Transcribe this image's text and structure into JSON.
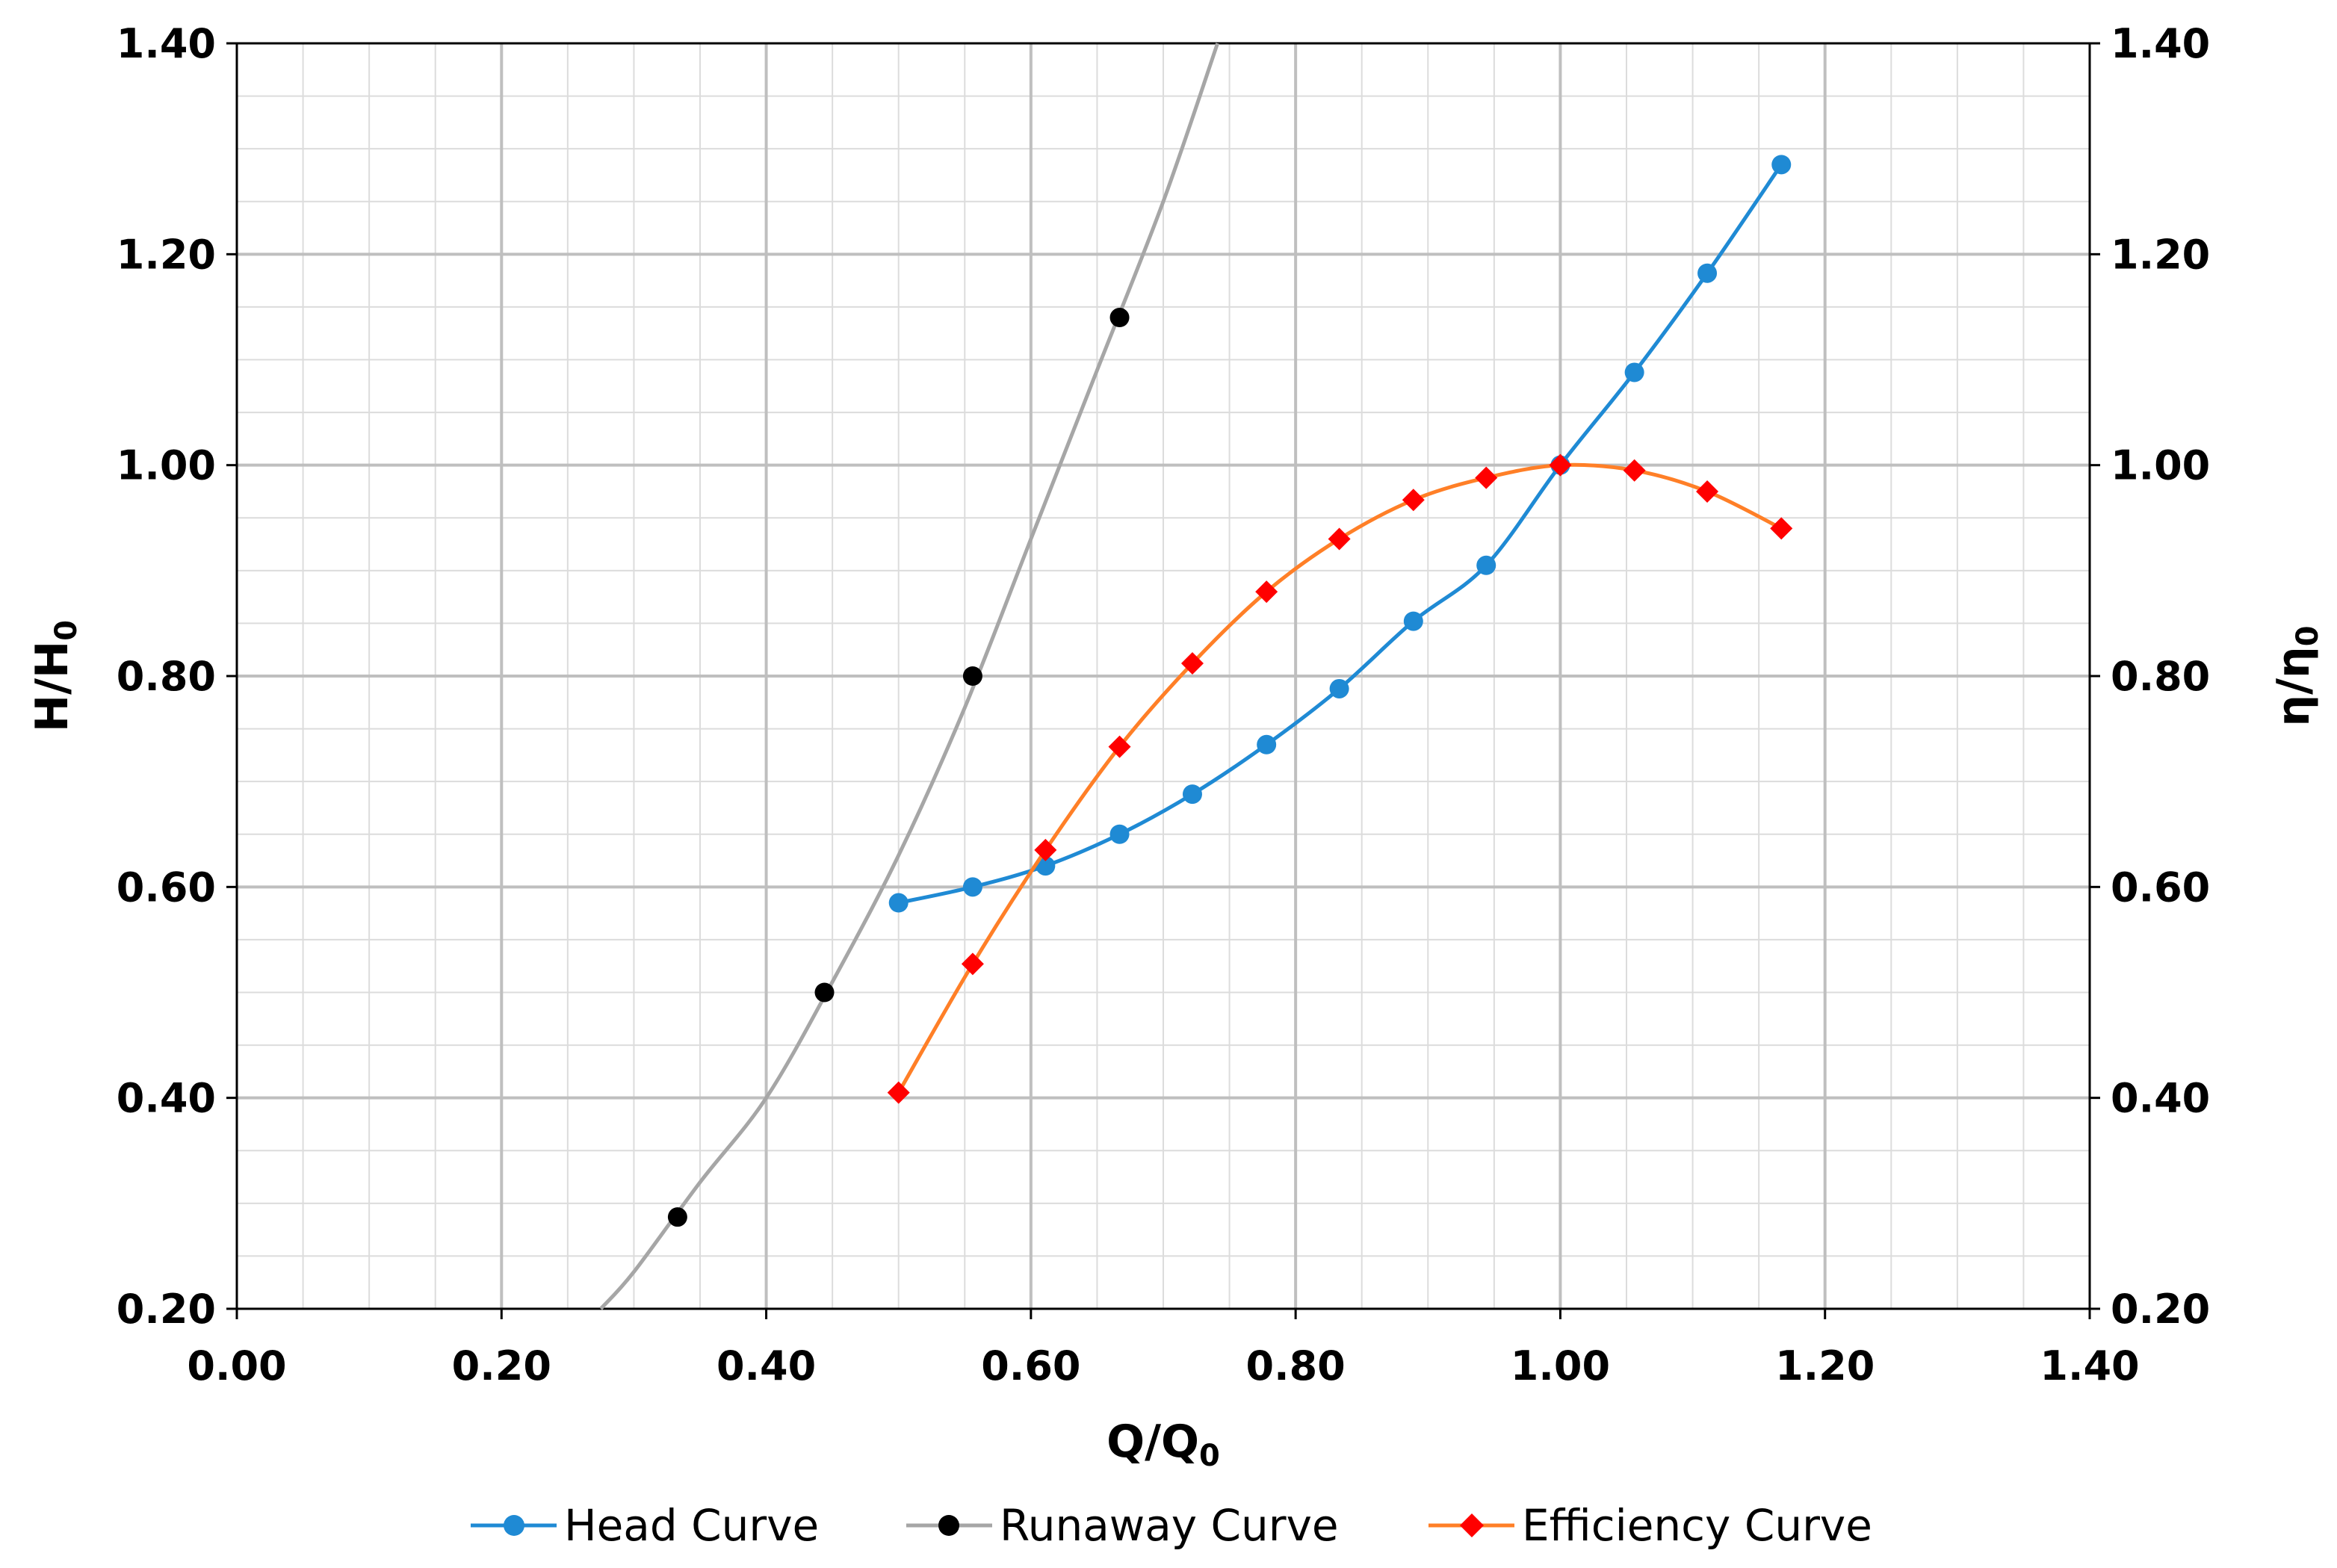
{
  "chart_data": {
    "type": "line",
    "xlabel": "Q/Q",
    "xlabel_sub": "0",
    "ylabel_left": "H/H",
    "ylabel_left_sub": "0",
    "ylabel_right": "η/η",
    "ylabel_right_sub": "0",
    "xlim": [
      0.0,
      1.4
    ],
    "ylim": [
      0.2,
      1.4
    ],
    "x_major_step": 0.2,
    "y_major_step": 0.2,
    "minor_divisions": 4,
    "x_tick_labels": [
      "0.00",
      "0.20",
      "0.40",
      "0.60",
      "0.80",
      "1.00",
      "1.20",
      "1.40"
    ],
    "y_tick_labels": [
      "0.20",
      "0.40",
      "0.60",
      "0.80",
      "1.00",
      "1.20",
      "1.40"
    ],
    "grid": true,
    "legend_position": "bottom",
    "series": [
      {
        "name": "Head Curve",
        "color": "#1f8ad4",
        "marker": "circle",
        "axis": "left",
        "x": [
          0.5,
          0.556,
          0.611,
          0.667,
          0.722,
          0.778,
          0.833,
          0.889,
          0.944,
          1.0,
          1.056,
          1.111,
          1.167
        ],
        "y": [
          0.585,
          0.6,
          0.62,
          0.65,
          0.688,
          0.735,
          0.788,
          0.852,
          0.905,
          1.0,
          1.088,
          1.182,
          1.285
        ]
      },
      {
        "name": "Runaway Curve",
        "color": "#a6a6a6",
        "marker_color": "#000000",
        "marker": "circle",
        "axis": "left",
        "x": [
          0.333,
          0.444,
          0.556,
          0.667
        ],
        "y": [
          0.287,
          0.5,
          0.8,
          1.14
        ],
        "fit_line": {
          "x": [
            0.275,
            0.3,
            0.35,
            0.4,
            0.45,
            0.5,
            0.55,
            0.6,
            0.65,
            0.7,
            0.741
          ],
          "y": [
            0.2,
            0.235,
            0.32,
            0.4,
            0.51,
            0.63,
            0.77,
            0.93,
            1.09,
            1.25,
            1.4
          ]
        }
      },
      {
        "name": "Efficiency Curve",
        "color": "#ff7f27",
        "marker_color": "#ff0000",
        "marker": "diamond",
        "axis": "right",
        "x": [
          0.5,
          0.556,
          0.611,
          0.667,
          0.722,
          0.778,
          0.833,
          0.889,
          0.944,
          1.0,
          1.056,
          1.111,
          1.167
        ],
        "y": [
          0.405,
          0.527,
          0.635,
          0.733,
          0.812,
          0.88,
          0.93,
          0.967,
          0.988,
          1.0,
          0.995,
          0.975,
          0.94
        ]
      }
    ]
  }
}
